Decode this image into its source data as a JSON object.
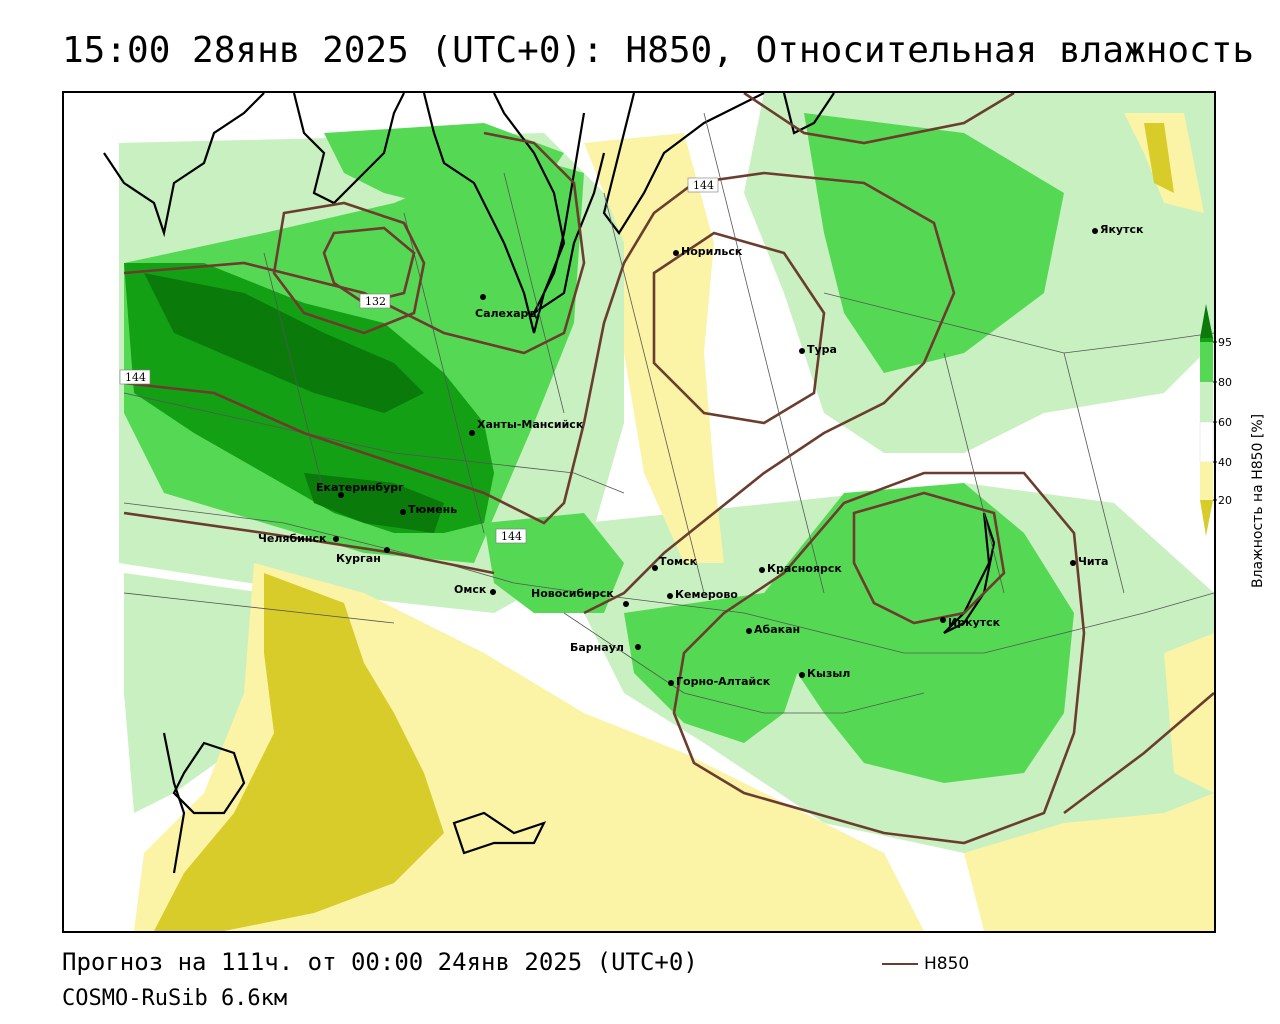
{
  "title": "15:00 28янв 2025 (UTC+0): H850, Относительная влажность",
  "footer": {
    "forecast": "Прогноз на 111ч. от 00:00 24янв 2025 (UTC+0)",
    "model": "COSMO-RuSib 6.6км"
  },
  "contour_legend": {
    "label": "H850",
    "color": "#6b3d2e"
  },
  "legend": {
    "title": "Влажность на H850 [%]",
    "ticks": [
      "95",
      "80",
      "60",
      "40",
      "20"
    ],
    "colors": {
      "very_dry": "#d8cc2a",
      "dry": "#fbf3a6",
      "neutral": "#ffffff",
      "moist": "#c9f0c0",
      "wet": "#55d955",
      "very_wet": "#14a014",
      "saturated": "#0a7a0a"
    }
  },
  "isolines": [
    "144",
    "132",
    "144",
    "144"
  ],
  "cities": [
    {
      "name": "Салехард"
    },
    {
      "name": "Норильск"
    },
    {
      "name": "Якутск"
    },
    {
      "name": "Тура"
    },
    {
      "name": "Ханты-Мансийск"
    },
    {
      "name": "Екатеринбург"
    },
    {
      "name": "Тюмень"
    },
    {
      "name": "Челябинск"
    },
    {
      "name": "Курган"
    },
    {
      "name": "Омск"
    },
    {
      "name": "Новосибирск"
    },
    {
      "name": "Томск"
    },
    {
      "name": "Кемерово"
    },
    {
      "name": "Красноярск"
    },
    {
      "name": "Барнаул"
    },
    {
      "name": "Абакан"
    },
    {
      "name": "Горно-Алтайск"
    },
    {
      "name": "Кызыл"
    },
    {
      "name": "Иркутск"
    },
    {
      "name": "Чита"
    }
  ]
}
